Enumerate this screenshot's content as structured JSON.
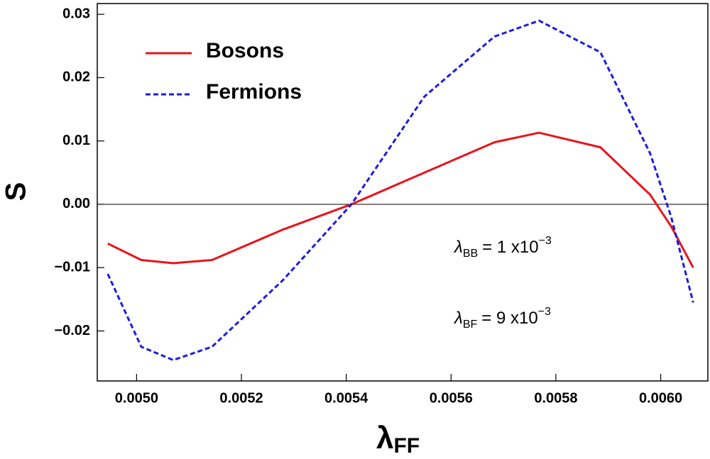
{
  "chart_data": {
    "type": "line",
    "xlabel": {
      "main": "λ",
      "sub": "FF"
    },
    "ylabel": "S",
    "xlim": [
      0.004925,
      0.00609
    ],
    "ylim": [
      -0.0279,
      0.0317
    ],
    "xticks": [
      {
        "value": 0.005,
        "label": "0.0050"
      },
      {
        "value": 0.0052,
        "label": "0.0052"
      },
      {
        "value": 0.0054,
        "label": "0.0054"
      },
      {
        "value": 0.0056,
        "label": "0.0056"
      },
      {
        "value": 0.0058,
        "label": "0.0058"
      },
      {
        "value": 0.006,
        "label": "0.0060"
      }
    ],
    "yticks": [
      {
        "value": -0.02,
        "label": "−0.02"
      },
      {
        "value": -0.01,
        "label": "−0.01"
      },
      {
        "value": 0,
        "label": "0.00"
      },
      0.01,
      0.02,
      0.03
    ],
    "x": [
      0.004945,
      0.005009,
      0.00507,
      0.005144,
      0.005279,
      0.00541,
      0.005549,
      0.005683,
      0.005768,
      0.005885,
      0.00598,
      0.00602,
      0.006062
    ],
    "series": [
      {
        "name": "Bosons",
        "color": "#e8141c",
        "dash": false,
        "values": [
          -0.0062,
          -0.0088,
          -0.0093,
          -0.0088,
          -0.004,
          0.0,
          0.005,
          0.0098,
          0.0113,
          0.009,
          0.0015,
          -0.0035,
          -0.01
        ]
      },
      {
        "name": "Fermions",
        "color": "#1c1ce0",
        "dash": true,
        "values": [
          -0.011,
          -0.0225,
          -0.0246,
          -0.0225,
          -0.012,
          0.0,
          0.017,
          0.0265,
          0.029,
          0.024,
          0.008,
          -0.002,
          -0.0155
        ]
      }
    ],
    "annotations": [
      {
        "symbol": "λ",
        "sub": "BB",
        "text": "= 1 x10",
        "sup": "−3"
      },
      {
        "symbol": "λ",
        "sub": "BF",
        "text": "= 9 x10",
        "sup": "−3"
      }
    ]
  }
}
